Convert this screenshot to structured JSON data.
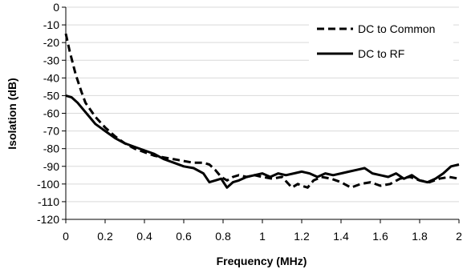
{
  "chart_data": {
    "type": "line",
    "title": "",
    "xlabel": "Frequency (MHz)",
    "ylabel": "Isolation (dB)",
    "xlim": [
      0,
      2
    ],
    "ylim": [
      -120,
      0
    ],
    "x_ticks": [
      0,
      0.2,
      0.4,
      0.6,
      0.8,
      1,
      1.2,
      1.4,
      1.6,
      1.8,
      2
    ],
    "x_tick_labels": [
      "0",
      "0.2",
      "0.4",
      "0.6",
      "0.8",
      "1",
      "1.2",
      "1.4",
      "1.6",
      "1.8",
      "2"
    ],
    "y_ticks": [
      0,
      -10,
      -20,
      -30,
      -40,
      -50,
      -60,
      -70,
      -80,
      -90,
      -100,
      -110,
      -120
    ],
    "y_tick_labels": [
      "0",
      "-10",
      "-20",
      "-30",
      "-40",
      "-50",
      "-60",
      "-70",
      "-80",
      "-90",
      "-100",
      "-110",
      "-120"
    ],
    "grid": "horizontal",
    "legend_position": "top-right",
    "series": [
      {
        "name": "DC to Common",
        "style": "dashed",
        "color": "#000000",
        "x": [
          0,
          0.02,
          0.05,
          0.08,
          0.1,
          0.15,
          0.2,
          0.25,
          0.3,
          0.35,
          0.4,
          0.45,
          0.5,
          0.55,
          0.6,
          0.65,
          0.7,
          0.73,
          0.76,
          0.79,
          0.82,
          0.85,
          0.88,
          0.92,
          0.96,
          1.0,
          1.05,
          1.1,
          1.15,
          1.18,
          1.2,
          1.23,
          1.26,
          1.3,
          1.35,
          1.4,
          1.45,
          1.5,
          1.55,
          1.6,
          1.65,
          1.7,
          1.75,
          1.8,
          1.85,
          1.9,
          1.95,
          2.0
        ],
        "y": [
          -15,
          -25,
          -38,
          -48,
          -54,
          -62,
          -68,
          -73,
          -77,
          -80,
          -82,
          -84,
          -85,
          -86,
          -87,
          -88,
          -88,
          -89,
          -92,
          -96,
          -98,
          -96,
          -95,
          -96,
          -95,
          -96,
          -97,
          -96,
          -102,
          -100,
          -101,
          -102,
          -98,
          -96,
          -97,
          -99,
          -102,
          -100,
          -99,
          -101,
          -100,
          -97,
          -96,
          -98,
          -99,
          -97,
          -96,
          -97
        ]
      },
      {
        "name": "DC to RF",
        "style": "solid",
        "color": "#000000",
        "x": [
          0,
          0.03,
          0.06,
          0.09,
          0.12,
          0.15,
          0.2,
          0.25,
          0.3,
          0.35,
          0.4,
          0.45,
          0.5,
          0.55,
          0.6,
          0.65,
          0.7,
          0.73,
          0.76,
          0.79,
          0.82,
          0.85,
          0.88,
          0.92,
          0.96,
          1.0,
          1.04,
          1.08,
          1.12,
          1.16,
          1.2,
          1.24,
          1.28,
          1.32,
          1.36,
          1.4,
          1.44,
          1.48,
          1.52,
          1.56,
          1.6,
          1.64,
          1.68,
          1.72,
          1.76,
          1.8,
          1.84,
          1.88,
          1.92,
          1.96,
          2.0
        ],
        "y": [
          -50,
          -51,
          -54,
          -58,
          -62,
          -66,
          -70,
          -74,
          -77,
          -79,
          -81,
          -83,
          -86,
          -88,
          -90,
          -91,
          -94,
          -99,
          -98,
          -97,
          -102,
          -99,
          -98,
          -96,
          -95,
          -94,
          -96,
          -94,
          -95,
          -94,
          -93,
          -94,
          -96,
          -94,
          -95,
          -94,
          -93,
          -92,
          -91,
          -94,
          -95,
          -96,
          -94,
          -97,
          -95,
          -98,
          -99,
          -97,
          -94,
          -90,
          -89
        ]
      }
    ]
  }
}
